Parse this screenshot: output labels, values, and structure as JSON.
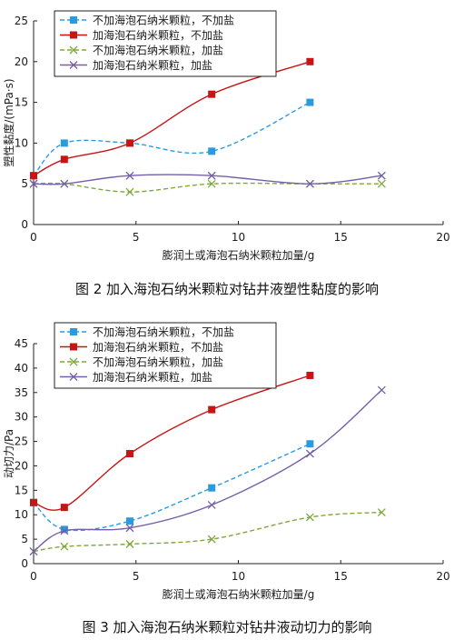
{
  "chart_data": [
    {
      "type": "line",
      "caption": "图 2  加入海泡石纳米颗粒对钻井液塑性黏度的影响",
      "xlabel": "膨润土或海泡石纳米颗粒加量/g",
      "ylabel": "塑性黏度/(mPa·s)",
      "xlim": [
        0,
        20
      ],
      "ylim": [
        0,
        25
      ],
      "xticks": [
        "0",
        "5",
        "10",
        "15",
        "20"
      ],
      "yticks": [
        "0",
        "5",
        "10",
        "15",
        "20",
        "25"
      ],
      "legend_position": "top-left",
      "series": [
        {
          "name": "不加海泡石纳米颗粒，不加盐",
          "color": "#2b9be0",
          "line": "dashed",
          "marker": "square",
          "x": [
            0,
            1.5,
            4.7,
            8.7,
            13.5
          ],
          "y": [
            6,
            10,
            10,
            9,
            15
          ]
        },
        {
          "name": "加海泡石纳米颗粒，不加盐",
          "color": "#c81414",
          "line": "solid",
          "marker": "square",
          "x": [
            0,
            1.5,
            4.7,
            8.7,
            13.5
          ],
          "y": [
            6,
            8,
            10,
            16,
            20
          ]
        },
        {
          "name": "不加海泡石纳米颗粒，加盐",
          "color": "#7ea83c",
          "line": "dashed",
          "marker": "x",
          "x": [
            0,
            1.5,
            4.7,
            8.7,
            13.5,
            17
          ],
          "y": [
            5,
            5,
            4,
            5,
            5,
            5
          ]
        },
        {
          "name": "加海泡石纳米颗粒，加盐",
          "color": "#7560a8",
          "line": "solid",
          "marker": "x",
          "x": [
            0,
            1.5,
            4.7,
            8.7,
            13.5,
            17
          ],
          "y": [
            5,
            5,
            6,
            6,
            5,
            6
          ]
        }
      ]
    },
    {
      "type": "line",
      "caption": "图 3  加入海泡石纳米颗粒对钻井液动切力的影响",
      "xlabel": "膨润土或海泡石纳米颗粒加量/g",
      "ylabel": "动切力/Pa",
      "xlim": [
        0,
        20
      ],
      "ylim": [
        0,
        45
      ],
      "xticks": [
        "0",
        "5",
        "10",
        "15",
        "20"
      ],
      "yticks": [
        "0",
        "5",
        "10",
        "15",
        "20",
        "25",
        "30",
        "35",
        "40",
        "45"
      ],
      "legend_position": "top-left",
      "series": [
        {
          "name": "不加海泡石纳米颗粒，不加盐",
          "color": "#2b9be0",
          "line": "dashed",
          "marker": "square",
          "x": [
            0,
            1.5,
            4.7,
            8.7,
            13.5
          ],
          "y": [
            12.5,
            7,
            8.7,
            15.5,
            24.5
          ]
        },
        {
          "name": "加海泡石纳米颗粒，不加盐",
          "color": "#c81414",
          "line": "solid",
          "marker": "square",
          "x": [
            0,
            1.5,
            4.7,
            8.7,
            13.5
          ],
          "y": [
            12.5,
            11.5,
            22.5,
            31.5,
            38.5
          ]
        },
        {
          "name": "不加海泡石纳米颗粒，加盐",
          "color": "#7ea83c",
          "line": "dashed",
          "marker": "x",
          "x": [
            0,
            1.5,
            4.7,
            8.7,
            13.5,
            17
          ],
          "y": [
            2.5,
            3.5,
            4,
            5,
            9.5,
            10.5
          ]
        },
        {
          "name": "加海泡石纳米颗粒，加盐",
          "color": "#7560a8",
          "line": "solid",
          "marker": "x",
          "x": [
            0,
            1.5,
            4.7,
            8.7,
            13.5,
            17
          ],
          "y": [
            2.5,
            6.7,
            7.3,
            12,
            22.5,
            35.5
          ]
        }
      ]
    }
  ]
}
